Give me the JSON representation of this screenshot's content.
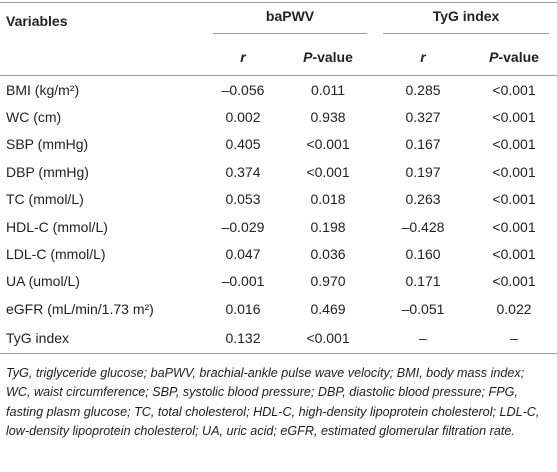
{
  "table": {
    "groups": [
      "Variables",
      "baPWV",
      "TyG index"
    ],
    "subheaders": [
      "r",
      "P-value",
      "r",
      "P-value"
    ],
    "rows": [
      [
        "BMI (kg/m²)",
        "–0.056",
        "0.011",
        "0.285",
        "<0.001"
      ],
      [
        "WC (cm)",
        "0.002",
        "0.938",
        "0.327",
        "<0.001"
      ],
      [
        "SBP (mmHg)",
        "0.405",
        "<0.001",
        "0.167",
        "<0.001"
      ],
      [
        "DBP (mmHg)",
        "0.374",
        "<0.001",
        "0.197",
        "<0.001"
      ],
      [
        "TC (mmol/L)",
        "0.053",
        "0.018",
        "0.263",
        "<0.001"
      ],
      [
        "HDL-C (mmol/L)",
        "–0.029",
        "0.198",
        "–0.428",
        "<0.001"
      ],
      [
        "LDL-C (mmol/L)",
        "0.047",
        "0.036",
        "0.160",
        "<0.001"
      ],
      [
        "UA (umol/L)",
        "–0.001",
        "0.970",
        "0.171",
        "<0.001"
      ],
      [
        "eGFR (mL/min/1.73 m²)",
        "0.016",
        "0.469",
        "–0.051",
        "0.022"
      ],
      [
        "TyG index",
        "0.132",
        "<0.001",
        "–",
        "–"
      ]
    ],
    "footnote": "TyG, triglyceride glucose; baPWV, brachial-ankle pulse wave velocity; BMI, body mass index; WC, waist circumference; SBP, systolic blood pressure; DBP, diastolic blood pressure; FPG, fasting plasm glucose; TC, total cholesterol; HDL-C, high-density lipoprotein cholesterol; LDL-C, low-density lipoprotein cholesterol; UA, uric acid; eGFR, estimated glomerular filtration rate."
  }
}
